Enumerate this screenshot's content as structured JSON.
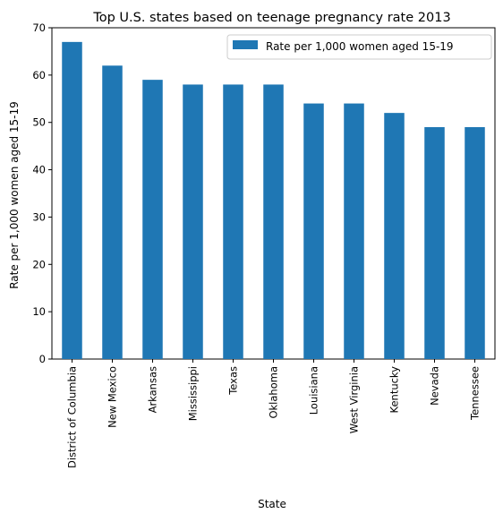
{
  "chart_data": {
    "type": "bar",
    "title": "Top U.S. states based on teenage pregnancy rate 2013",
    "xlabel": "State",
    "ylabel": "Rate per 1,000 women aged 15-19",
    "categories": [
      "District of Columbia",
      "New Mexico",
      "Arkansas",
      "Mississippi",
      "Texas",
      "Oklahoma",
      "Louisiana",
      "West Virginia",
      "Kentucky",
      "Nevada",
      "Tennessee"
    ],
    "series": [
      {
        "name": "Rate per 1,000 women aged 15-19",
        "values": [
          67,
          62,
          59,
          58,
          58,
          58,
          54,
          54,
          52,
          49,
          49
        ],
        "color": "#1f77b4"
      }
    ],
    "ylim": [
      0,
      70
    ],
    "yticks": [
      0,
      10,
      20,
      30,
      40,
      50,
      60,
      70
    ],
    "grid": false,
    "legend": "top-right"
  }
}
